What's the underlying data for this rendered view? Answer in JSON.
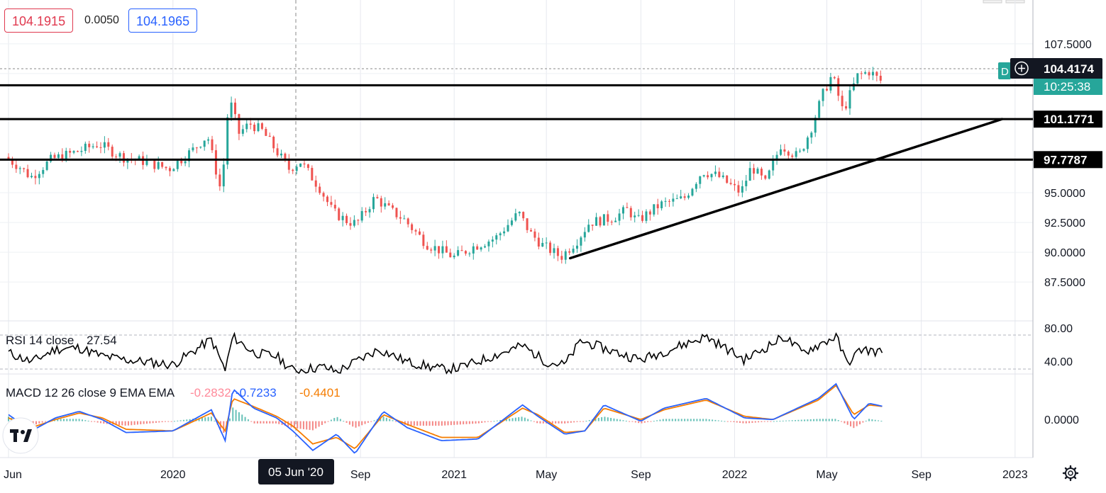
{
  "header": {
    "bid": "104.1915",
    "spread": "0.0050",
    "ask": "104.1965"
  },
  "price_axis": {
    "ticks": [
      "107.5000",
      "95.0000",
      "92.5000",
      "90.0000",
      "87.5000"
    ],
    "last_price": "104.4174",
    "countdown": "10:25:38",
    "level_labels": [
      "104.0222",
      "101.1771",
      "97.7787"
    ],
    "marker_text": "D"
  },
  "rsi_axis": {
    "ticks": [
      "80.00",
      "40.00"
    ]
  },
  "macd_axis": {
    "ticks": [
      "0.0000"
    ]
  },
  "time_axis": {
    "ticks": [
      "Jun",
      "2020",
      "Sep",
      "2021",
      "May",
      "Sep",
      "2022",
      "May",
      "Sep",
      "2023"
    ],
    "crosshair_label": "05 Jun '20"
  },
  "indicators": {
    "rsi": {
      "label": "RSI 14 close",
      "value": "27.54"
    },
    "macd": {
      "label": "MACD 12 26 close 9 EMA EMA",
      "histogram": "-0.2832",
      "macd": "-0.7233",
      "signal": "-0.4401"
    }
  },
  "colors": {
    "up": "#26a69a",
    "down": "#ef5350",
    "macd_line": "#2962ff",
    "signal_line": "#f57c00",
    "rsi_line": "#000000",
    "bid": "#e0394f",
    "ask": "#2962ff",
    "countdown_bg": "#26a69a"
  },
  "logo": "TV",
  "chart_data": [
    {
      "type": "candlestick",
      "title": "",
      "x_range": [
        "2019-06-01",
        "2023-01-15"
      ],
      "ylim": [
        86.2,
        108.8
      ],
      "grid": true,
      "series": [
        {
          "values": [
            [
              "2019-06-01",
              98.0
            ],
            [
              "2019-06-20",
              97.2
            ],
            [
              "2019-07-05",
              96.3
            ],
            [
              "2019-08-01",
              97.8
            ],
            [
              "2019-09-01",
              98.4
            ],
            [
              "2019-10-01",
              99.1
            ],
            [
              "2019-11-01",
              98.0
            ],
            [
              "2019-12-01",
              97.6
            ],
            [
              "2020-01-01",
              97.0
            ],
            [
              "2020-02-01",
              98.6
            ],
            [
              "2020-02-20",
              99.8
            ],
            [
              "2020-03-09",
              95.0
            ],
            [
              "2020-03-19",
              103.0
            ],
            [
              "2020-04-01",
              100.0
            ],
            [
              "2020-04-15",
              100.8
            ],
            [
              "2020-05-01",
              100.2
            ],
            [
              "2020-06-05",
              97.0
            ],
            [
              "2020-06-20",
              97.6
            ],
            [
              "2020-07-15",
              95.4
            ],
            [
              "2020-08-01",
              93.4
            ],
            [
              "2020-08-20",
              92.6
            ],
            [
              "2020-09-01",
              92.4
            ],
            [
              "2020-09-25",
              94.6
            ],
            [
              "2020-10-15",
              93.5
            ],
            [
              "2020-11-01",
              92.8
            ],
            [
              "2020-12-01",
              90.7
            ],
            [
              "2021-01-06",
              89.6
            ],
            [
              "2021-02-01",
              90.5
            ],
            [
              "2021-03-01",
              91.2
            ],
            [
              "2021-03-31",
              93.3
            ],
            [
              "2021-04-15",
              91.6
            ],
            [
              "2021-05-01",
              90.6
            ],
            [
              "2021-05-25",
              89.6
            ],
            [
              "2021-06-15",
              91.0
            ],
            [
              "2021-07-01",
              92.5
            ],
            [
              "2021-08-01",
              92.9
            ],
            [
              "2021-08-20",
              93.6
            ],
            [
              "2021-09-01",
              92.6
            ],
            [
              "2021-10-01",
              94.0
            ],
            [
              "2021-11-01",
              94.5
            ],
            [
              "2021-11-25",
              96.8
            ],
            [
              "2021-12-15",
              96.4
            ],
            [
              "2022-01-14",
              95.0
            ],
            [
              "2022-01-28",
              97.2
            ],
            [
              "2022-02-15",
              95.8
            ],
            [
              "2022-03-07",
              99.0
            ],
            [
              "2022-03-30",
              98.0
            ],
            [
              "2022-04-15",
              100.3
            ],
            [
              "2022-05-01",
              103.3
            ],
            [
              "2022-05-13",
              104.9
            ],
            [
              "2022-05-27",
              101.8
            ],
            [
              "2022-06-15",
              104.8
            ],
            [
              "2022-07-01",
              105.2
            ],
            [
              "2022-07-14",
              104.4
            ]
          ]
        }
      ],
      "horizontal_levels": [
        104.0222,
        101.1771,
        97.7787
      ],
      "trendline": {
        "from": [
          "2021-06-01",
          89.5
        ],
        "to": [
          "2022-12-15",
          101.18
        ]
      }
    },
    {
      "type": "line",
      "title": "RSI 14 close",
      "ylim": [
        25,
        95
      ],
      "series": [
        {
          "values": [
            [
              "2019-06-01",
              55
            ],
            [
              "2019-07-01",
              42
            ],
            [
              "2019-08-01",
              60
            ],
            [
              "2019-09-01",
              62
            ],
            [
              "2019-10-01",
              50
            ],
            [
              "2019-11-01",
              45
            ],
            [
              "2020-01-01",
              38
            ],
            [
              "2020-02-20",
              74
            ],
            [
              "2020-03-09",
              30
            ],
            [
              "2020-03-19",
              78
            ],
            [
              "2020-04-15",
              55
            ],
            [
              "2020-05-15",
              50
            ],
            [
              "2020-06-05",
              30
            ],
            [
              "2020-07-15",
              35
            ],
            [
              "2020-08-01",
              28
            ],
            [
              "2020-09-25",
              60
            ],
            [
              "2020-11-01",
              42
            ],
            [
              "2020-12-15",
              32
            ],
            [
              "2021-01-06",
              33
            ],
            [
              "2021-03-31",
              65
            ],
            [
              "2021-05-01",
              42
            ],
            [
              "2021-05-25",
              38
            ],
            [
              "2021-06-15",
              72
            ],
            [
              "2021-08-01",
              55
            ],
            [
              "2021-09-01",
              45
            ],
            [
              "2021-11-25",
              78
            ],
            [
              "2022-01-14",
              45
            ],
            [
              "2022-03-07",
              78
            ],
            [
              "2022-03-30",
              55
            ],
            [
              "2022-05-13",
              78
            ],
            [
              "2022-05-27",
              40
            ],
            [
              "2022-06-15",
              60
            ],
            [
              "2022-07-14",
              55
            ]
          ]
        }
      ]
    },
    {
      "type": "line",
      "title": "MACD 12 26 close 9 EMA EMA",
      "ylim": [
        -2.2,
        2.6
      ],
      "series": [
        {
          "values": [
            [
              "2019-06-01",
              0.4
            ],
            [
              "2019-07-01",
              -0.6
            ],
            [
              "2019-08-01",
              0.2
            ],
            [
              "2019-09-01",
              0.6
            ],
            [
              "2019-10-01",
              0.1
            ],
            [
              "2019-11-01",
              -0.7
            ],
            [
              "2020-01-01",
              -0.6
            ],
            [
              "2020-02-20",
              0.7
            ],
            [
              "2020-03-09",
              -1.2
            ],
            [
              "2020-03-19",
              2.0
            ],
            [
              "2020-04-15",
              0.8
            ],
            [
              "2020-05-15",
              0.2
            ],
            [
              "2020-06-05",
              -0.6
            ],
            [
              "2020-07-01",
              -1.8
            ],
            [
              "2020-08-01",
              -0.8
            ],
            [
              "2020-08-25",
              -2.0
            ],
            [
              "2020-10-01",
              0.6
            ],
            [
              "2020-11-01",
              -0.4
            ],
            [
              "2020-12-15",
              -1.2
            ],
            [
              "2021-02-01",
              -1.1
            ],
            [
              "2021-03-31",
              1.0
            ],
            [
              "2021-04-20",
              0.3
            ],
            [
              "2021-05-25",
              -0.8
            ],
            [
              "2021-06-20",
              -0.6
            ],
            [
              "2021-07-15",
              1.0
            ],
            [
              "2021-09-01",
              0.0
            ],
            [
              "2021-10-01",
              0.8
            ],
            [
              "2021-11-25",
              1.4
            ],
            [
              "2022-01-14",
              0.2
            ],
            [
              "2022-02-20",
              0.1
            ],
            [
              "2022-04-20",
              1.4
            ],
            [
              "2022-05-13",
              2.3
            ],
            [
              "2022-06-05",
              0.1
            ],
            [
              "2022-06-25",
              1.1
            ],
            [
              "2022-07-14",
              0.9
            ]
          ]
        },
        {
          "values": [
            [
              "2019-06-01",
              0.2
            ],
            [
              "2019-07-01",
              -0.4
            ],
            [
              "2019-08-01",
              0.1
            ],
            [
              "2019-09-01",
              0.5
            ],
            [
              "2019-10-01",
              0.2
            ],
            [
              "2019-11-01",
              -0.5
            ],
            [
              "2020-01-01",
              -0.6
            ],
            [
              "2020-02-20",
              0.5
            ],
            [
              "2020-03-09",
              -0.6
            ],
            [
              "2020-03-19",
              1.4
            ],
            [
              "2020-04-15",
              0.9
            ],
            [
              "2020-05-15",
              0.3
            ],
            [
              "2020-06-05",
              -0.3
            ],
            [
              "2020-07-01",
              -1.4
            ],
            [
              "2020-08-01",
              -1.0
            ],
            [
              "2020-08-25",
              -1.7
            ],
            [
              "2020-10-01",
              0.4
            ],
            [
              "2020-11-01",
              -0.2
            ],
            [
              "2020-12-15",
              -1.0
            ],
            [
              "2021-02-01",
              -1.0
            ],
            [
              "2021-03-31",
              0.8
            ],
            [
              "2021-04-20",
              0.4
            ],
            [
              "2021-05-25",
              -0.7
            ],
            [
              "2021-06-20",
              -0.6
            ],
            [
              "2021-07-15",
              0.8
            ],
            [
              "2021-09-01",
              0.1
            ],
            [
              "2021-10-01",
              0.7
            ],
            [
              "2021-11-25",
              1.3
            ],
            [
              "2022-01-14",
              0.3
            ],
            [
              "2022-02-20",
              0.1
            ],
            [
              "2022-04-20",
              1.3
            ],
            [
              "2022-05-13",
              2.2
            ],
            [
              "2022-06-05",
              0.4
            ],
            [
              "2022-06-25",
              1.0
            ],
            [
              "2022-07-14",
              0.9
            ]
          ]
        }
      ]
    }
  ]
}
